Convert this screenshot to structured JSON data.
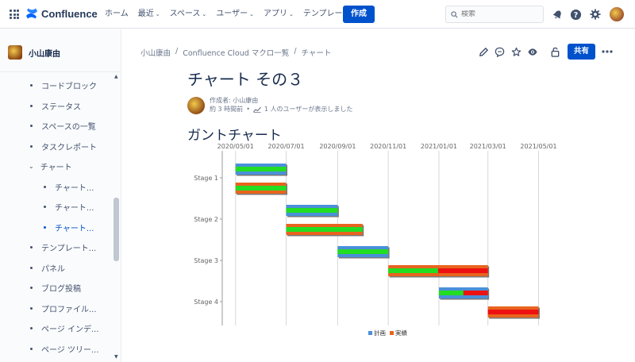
{
  "nav": {
    "product": "Confluence",
    "items": [
      {
        "label": "ホーム",
        "caret": false
      },
      {
        "label": "最近",
        "caret": true
      },
      {
        "label": "スペース",
        "caret": true
      },
      {
        "label": "ユーザー",
        "caret": true
      },
      {
        "label": "アプリ",
        "caret": true
      },
      {
        "label": "テンプレート",
        "caret": false
      }
    ],
    "create_label": "作成",
    "search_placeholder": "検索"
  },
  "sidebar": {
    "space_name": "小山康由",
    "items": [
      {
        "label": "コードブロック",
        "level": 0,
        "type": "bullet"
      },
      {
        "label": "ステータス",
        "level": 0,
        "type": "bullet"
      },
      {
        "label": "スペースの一覧",
        "level": 0,
        "type": "bullet"
      },
      {
        "label": "タスクレポート",
        "level": 0,
        "type": "bullet"
      },
      {
        "label": "チャート",
        "level": 0,
        "type": "expanded"
      },
      {
        "label": "チャート...",
        "level": 1,
        "type": "bullet"
      },
      {
        "label": "チャート...",
        "level": 1,
        "type": "bullet"
      },
      {
        "label": "チャート...",
        "level": 1,
        "type": "bullet",
        "active": true
      },
      {
        "label": "テンプレート...",
        "level": 0,
        "type": "bullet"
      },
      {
        "label": "パネル",
        "level": 0,
        "type": "bullet"
      },
      {
        "label": "ブログ投稿",
        "level": 0,
        "type": "bullet"
      },
      {
        "label": "プロファイル...",
        "level": 0,
        "type": "bullet"
      },
      {
        "label": "ページ インデ...",
        "level": 0,
        "type": "bullet"
      },
      {
        "label": "ページ ツリー...",
        "level": 0,
        "type": "bullet"
      }
    ]
  },
  "breadcrumb": [
    "小山康由",
    "Confluence Cloud マクロ一覧",
    "チャート"
  ],
  "share_label": "共有",
  "page": {
    "title": "チャート その３",
    "byline_author": "作成者: 小山康由",
    "byline_time": "約 3 時間前",
    "byline_views": "1 人のユーザーが表示しました",
    "section_title": "ガントチャート"
  },
  "colors": {
    "accent": "#0052cc",
    "plan_bar": "#4a90d9",
    "actual_bar": "#e8641e",
    "progress": "#22dd22",
    "late": "#ee1111"
  },
  "chart_data": {
    "type": "gantt",
    "x_ticks": [
      "2020/05/01",
      "2020/07/01",
      "2020/09/01",
      "2020/11/01",
      "2021/01/01",
      "2021/03/01",
      "2021/05/01"
    ],
    "categories": [
      "Stage 1",
      "Stage 2",
      "Stage 3",
      "Stage 4"
    ],
    "series": [
      {
        "name": "計画",
        "color": "#4a90d9",
        "tasks": [
          {
            "stage": "Stage 1",
            "start": "2020/05/01",
            "end": "2020/07/01",
            "progress": 1.0,
            "delay": 0
          },
          {
            "stage": "Stage 2",
            "start": "2020/07/01",
            "end": "2020/09/01",
            "progress": 1.0,
            "delay": 0
          },
          {
            "stage": "Stage 3",
            "start": "2020/09/01",
            "end": "2020/11/01",
            "progress": 1.0,
            "delay": 0
          },
          {
            "stage": "Stage 4",
            "start": "2021/01/01",
            "end": "2021/03/01",
            "progress": 0.5,
            "delay": 0.5
          }
        ]
      },
      {
        "name": "実績",
        "color": "#e8641e",
        "tasks": [
          {
            "stage": "Stage 1",
            "start": "2020/05/01",
            "end": "2020/07/01",
            "progress": 1.0,
            "delay": 0
          },
          {
            "stage": "Stage 2",
            "start": "2020/07/01",
            "end": "2020/10/01",
            "progress": 1.0,
            "delay": 0
          },
          {
            "stage": "Stage 3",
            "start": "2020/11/01",
            "end": "2021/03/01",
            "progress": 0.5,
            "delay": 0.5
          },
          {
            "stage": "Stage 4",
            "start": "2021/03/01",
            "end": "2021/05/01",
            "progress": 0,
            "delay": 1.0
          }
        ]
      }
    ],
    "legend": [
      "計画",
      "実績"
    ],
    "legend_position": "bottom",
    "grid": true
  }
}
